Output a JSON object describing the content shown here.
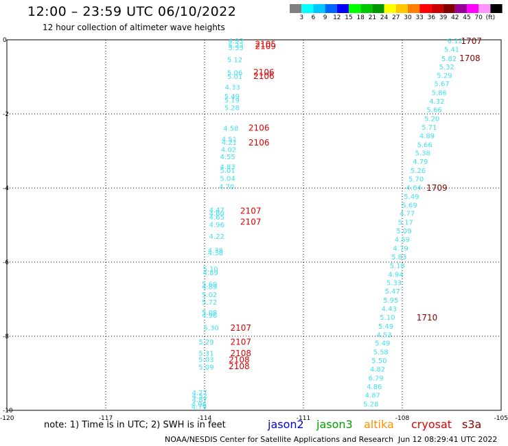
{
  "header": {
    "title": "12:00 – 23:59 UTC 06/10/2022",
    "subtitle": "12 hour collection of altimeter wave heights"
  },
  "colorscale": {
    "labels": [
      "3",
      "6",
      "9",
      "12",
      "15",
      "18",
      "21",
      "24",
      "27",
      "30",
      "33",
      "36",
      "39",
      "42",
      "45",
      "70",
      "(ft)"
    ],
    "colors": [
      "#808080",
      "#00ffff",
      "#00c8ff",
      "#0064ff",
      "#0000ff",
      "#00ff00",
      "#00c800",
      "#009600",
      "#ffff00",
      "#ffc800",
      "#ff8000",
      "#ff0000",
      "#c80000",
      "#800000",
      "#960096",
      "#ff00ff",
      "#ff96ff",
      "#000000"
    ]
  },
  "chart_data": {
    "type": "scatter",
    "title": "12:00 – 23:59 UTC 06/10/2022",
    "xlim": [
      -120,
      -105
    ],
    "ylim": [
      -10,
      0
    ],
    "x_ticks": [
      "-120",
      "-117",
      "-114",
      "-111",
      "-108",
      "-105"
    ],
    "y_ticks": [
      "0",
      "-2",
      "-4",
      "-6",
      "-8",
      "-10"
    ],
    "grid": true,
    "marker_color": "#40e0f0",
    "time_colors": {
      "dark": "#8b0000",
      "red": "#e00000"
    },
    "tracks": [
      {
        "name": "west",
        "points": [
          {
            "x": -113.05,
            "y": -0.02,
            "v": "4.93"
          },
          {
            "x": -113.05,
            "y": -0.14,
            "v": "5.22"
          },
          {
            "x": -113.05,
            "y": -0.2,
            "v": "5.33"
          },
          {
            "x": -113.08,
            "y": -0.53,
            "v": "5.12"
          },
          {
            "x": -113.08,
            "y": -0.88,
            "v": "5.06"
          },
          {
            "x": -113.08,
            "y": -0.98,
            "v": "5.01"
          },
          {
            "x": -113.15,
            "y": -1.27,
            "v": "4.33"
          },
          {
            "x": -113.17,
            "y": -1.52,
            "v": "5.49"
          },
          {
            "x": -113.17,
            "y": -1.62,
            "v": "5.19"
          },
          {
            "x": -113.17,
            "y": -1.82,
            "v": "5.28"
          },
          {
            "x": -113.2,
            "y": -2.38,
            "v": "4.58"
          },
          {
            "x": -113.25,
            "y": -2.68,
            "v": "4.51"
          },
          {
            "x": -113.25,
            "y": -2.76,
            "v": "4.21"
          },
          {
            "x": -113.27,
            "y": -2.95,
            "v": "4.02"
          },
          {
            "x": -113.3,
            "y": -3.15,
            "v": "4.55"
          },
          {
            "x": -113.3,
            "y": -3.42,
            "v": "4.83"
          },
          {
            "x": -113.3,
            "y": -3.52,
            "v": "5.01"
          },
          {
            "x": -113.3,
            "y": -3.73,
            "v": "5.04"
          },
          {
            "x": -113.33,
            "y": -3.95,
            "v": "4.70"
          },
          {
            "x": -113.63,
            "y": -4.58,
            "v": "4.47"
          },
          {
            "x": -113.63,
            "y": -4.68,
            "v": "4.80"
          },
          {
            "x": -113.63,
            "y": -4.78,
            "v": "4.65"
          },
          {
            "x": -113.63,
            "y": -4.98,
            "v": "4.96"
          },
          {
            "x": -113.63,
            "y": -5.3,
            "v": "4.22"
          },
          {
            "x": -113.67,
            "y": -5.68,
            "v": "4.38"
          },
          {
            "x": -113.67,
            "y": -5.74,
            "v": "4.38"
          },
          {
            "x": -113.82,
            "y": -6.18,
            "v": "5.10"
          },
          {
            "x": -113.82,
            "y": -6.28,
            "v": "4.89"
          },
          {
            "x": -113.85,
            "y": -6.58,
            "v": "5.69"
          },
          {
            "x": -113.85,
            "y": -6.66,
            "v": "4.89"
          },
          {
            "x": -113.85,
            "y": -6.87,
            "v": "5.02"
          },
          {
            "x": -113.85,
            "y": -7.07,
            "v": "5.72"
          },
          {
            "x": -113.85,
            "y": -7.35,
            "v": "5.08"
          },
          {
            "x": -113.85,
            "y": -7.43,
            "v": "4.96"
          },
          {
            "x": -113.8,
            "y": -7.77,
            "v": "5.30"
          },
          {
            "x": -113.95,
            "y": -8.15,
            "v": "5.29"
          },
          {
            "x": -113.95,
            "y": -8.45,
            "v": "5.31"
          },
          {
            "x": -113.95,
            "y": -8.62,
            "v": "5.03"
          },
          {
            "x": -113.95,
            "y": -8.82,
            "v": "5.09"
          },
          {
            "x": -114.15,
            "y": -9.52,
            "v": "4.77"
          },
          {
            "x": -114.15,
            "y": -9.6,
            "v": "4.52"
          },
          {
            "x": -114.15,
            "y": -9.7,
            "v": "4.87"
          },
          {
            "x": -114.17,
            "y": -9.82,
            "v": "4.96"
          },
          {
            "x": -114.17,
            "y": -9.9,
            "v": "4.79"
          }
        ]
      },
      {
        "name": "east",
        "points": [
          {
            "x": -106.4,
            "y": -0.02,
            "v": "6.12"
          },
          {
            "x": -106.5,
            "y": -0.25,
            "v": "5.41"
          },
          {
            "x": -106.58,
            "y": -0.5,
            "v": "5.82"
          },
          {
            "x": -106.65,
            "y": -0.72,
            "v": "5.32"
          },
          {
            "x": -106.72,
            "y": -0.95,
            "v": "5.29"
          },
          {
            "x": -106.8,
            "y": -1.18,
            "v": "5.67"
          },
          {
            "x": -106.88,
            "y": -1.42,
            "v": "5.86"
          },
          {
            "x": -106.95,
            "y": -1.65,
            "v": "4.32"
          },
          {
            "x": -107.03,
            "y": -1.88,
            "v": "5.66"
          },
          {
            "x": -107.1,
            "y": -2.12,
            "v": "5.20"
          },
          {
            "x": -107.18,
            "y": -2.35,
            "v": "5.71"
          },
          {
            "x": -107.25,
            "y": -2.58,
            "v": "4.89"
          },
          {
            "x": -107.32,
            "y": -2.82,
            "v": "5.66"
          },
          {
            "x": -107.38,
            "y": -3.05,
            "v": "5.38"
          },
          {
            "x": -107.45,
            "y": -3.28,
            "v": "4.79"
          },
          {
            "x": -107.52,
            "y": -3.52,
            "v": "5.26"
          },
          {
            "x": -107.58,
            "y": -3.75,
            "v": "5.70"
          },
          {
            "x": -107.65,
            "y": -3.98,
            "v": "4.64"
          },
          {
            "x": -107.72,
            "y": -4.22,
            "v": "5.49"
          },
          {
            "x": -107.78,
            "y": -4.45,
            "v": "5.69"
          },
          {
            "x": -107.85,
            "y": -4.68,
            "v": "4.77"
          },
          {
            "x": -107.9,
            "y": -4.92,
            "v": "5.17"
          },
          {
            "x": -107.95,
            "y": -5.15,
            "v": "5.09"
          },
          {
            "x": -108.0,
            "y": -5.38,
            "v": "4.59"
          },
          {
            "x": -108.05,
            "y": -5.62,
            "v": "4.79"
          },
          {
            "x": -108.1,
            "y": -5.85,
            "v": "5.83"
          },
          {
            "x": -108.15,
            "y": -6.08,
            "v": "5.18"
          },
          {
            "x": -108.2,
            "y": -6.32,
            "v": "4.94"
          },
          {
            "x": -108.25,
            "y": -6.55,
            "v": "5.33"
          },
          {
            "x": -108.3,
            "y": -6.78,
            "v": "5.47"
          },
          {
            "x": -108.35,
            "y": -7.02,
            "v": "5.95"
          },
          {
            "x": -108.4,
            "y": -7.25,
            "v": "4.43"
          },
          {
            "x": -108.45,
            "y": -7.48,
            "v": "5.10"
          },
          {
            "x": -108.5,
            "y": -7.72,
            "v": "5.49"
          },
          {
            "x": -108.55,
            "y": -7.95,
            "v": "4.53"
          },
          {
            "x": -108.6,
            "y": -8.18,
            "v": "5.49"
          },
          {
            "x": -108.65,
            "y": -8.42,
            "v": "5.58"
          },
          {
            "x": -108.7,
            "y": -8.65,
            "v": "5.50"
          },
          {
            "x": -108.75,
            "y": -8.88,
            "v": "4.82"
          },
          {
            "x": -108.8,
            "y": -9.12,
            "v": "6.79"
          },
          {
            "x": -108.85,
            "y": -9.35,
            "v": "4.86"
          },
          {
            "x": -108.9,
            "y": -9.58,
            "v": "4.87"
          },
          {
            "x": -108.95,
            "y": -9.82,
            "v": "5.28"
          }
        ]
      }
    ],
    "time_labels": [
      {
        "x": -112.15,
        "y": -0.1,
        "t": "2105",
        "c": "red"
      },
      {
        "x": -112.15,
        "y": -0.16,
        "t": "2109",
        "c": "red"
      },
      {
        "x": -112.2,
        "y": -0.86,
        "t": "2106",
        "c": "red"
      },
      {
        "x": -112.2,
        "y": -0.96,
        "t": "2106",
        "c": "red"
      },
      {
        "x": -112.35,
        "y": -2.36,
        "t": "2106",
        "c": "red"
      },
      {
        "x": -112.35,
        "y": -2.76,
        "t": "2106",
        "c": "red"
      },
      {
        "x": -112.6,
        "y": -4.6,
        "t": "2107",
        "c": "red"
      },
      {
        "x": -112.6,
        "y": -4.9,
        "t": "2107",
        "c": "red"
      },
      {
        "x": -112.9,
        "y": -7.76,
        "t": "2107",
        "c": "red"
      },
      {
        "x": -112.9,
        "y": -8.14,
        "t": "2107",
        "c": "red"
      },
      {
        "x": -112.9,
        "y": -8.44,
        "t": "2108",
        "c": "red"
      },
      {
        "x": -112.95,
        "y": -8.62,
        "t": "2108",
        "c": "red"
      },
      {
        "x": -112.95,
        "y": -8.8,
        "t": "2108",
        "c": "red"
      },
      {
        "x": -105.9,
        "y": -0.02,
        "t": "1707",
        "c": "dark"
      },
      {
        "x": -105.95,
        "y": -0.48,
        "t": "1708",
        "c": "dark"
      },
      {
        "x": -106.95,
        "y": -3.98,
        "t": "1709",
        "c": "dark"
      },
      {
        "x": -107.25,
        "y": -7.48,
        "t": "1710",
        "c": "dark"
      }
    ]
  },
  "footer": {
    "note": "note:  1) Time is in UTC; 2) SWH is in feet",
    "satellites": [
      {
        "name": "jason2",
        "color": "#0000e0"
      },
      {
        "name": "jason3",
        "color": "#00a000"
      },
      {
        "name": "altika",
        "color": "#ff9000"
      },
      {
        "name": "cryosat",
        "color": "#e00000"
      },
      {
        "name": "s3a",
        "color": "#8b0000"
      }
    ],
    "credit": "NOAA/NESDIS Center for Satellite Applications and Research",
    "timestamp": "Jun 12 08:29:41 UTC 2022"
  }
}
